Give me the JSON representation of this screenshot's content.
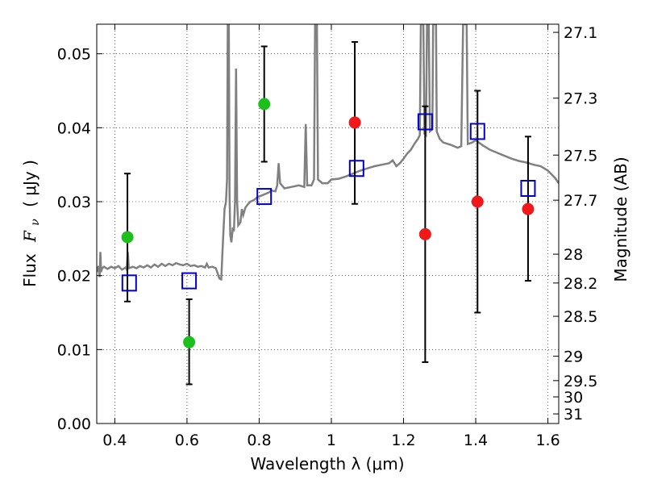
{
  "chart_data": {
    "type": "scatter",
    "title": "",
    "xlabel": "Wavelength  λ (μm)",
    "ylabel_prefix": "Flux",
    "ylabel_symbol": "F",
    "ylabel_subscript": "ν",
    "ylabel_unit": "( μJy )",
    "y2label": "Magnitude (AB)",
    "xlim": [
      0.35,
      1.63
    ],
    "ylim": [
      0.0,
      0.054
    ],
    "grid": true,
    "grid_style": "dotted",
    "x_ticks": [
      {
        "value": 0.4,
        "label": "0.4"
      },
      {
        "value": 0.6,
        "label": "0.6"
      },
      {
        "value": 0.8,
        "label": "0.8"
      },
      {
        "value": 1.0,
        "label": "1"
      },
      {
        "value": 1.2,
        "label": "1.2"
      },
      {
        "value": 1.4,
        "label": "1.4"
      },
      {
        "value": 1.6,
        "label": "1.6"
      }
    ],
    "y_ticks": [
      {
        "value": 0.0,
        "label": "0.00"
      },
      {
        "value": 0.01,
        "label": "0.01"
      },
      {
        "value": 0.02,
        "label": "0.02"
      },
      {
        "value": 0.03,
        "label": "0.03"
      },
      {
        "value": 0.04,
        "label": "0.04"
      },
      {
        "value": 0.05,
        "label": "0.05"
      }
    ],
    "y2_ticks": [
      {
        "flux": 0.0529,
        "label": "27.1"
      },
      {
        "flux": 0.044,
        "label": "27.3"
      },
      {
        "flux": 0.0363,
        "label": "27.5"
      },
      {
        "flux": 0.0302,
        "label": "27.7"
      },
      {
        "flux": 0.0229,
        "label": "28"
      },
      {
        "flux": 0.019,
        "label": "28.2"
      },
      {
        "flux": 0.0145,
        "label": "28.5"
      },
      {
        "flux": 0.0091,
        "label": "29"
      },
      {
        "flux": 0.0058,
        "label": "29.5"
      },
      {
        "flux": 0.0036,
        "label": "30"
      },
      {
        "flux": 0.0013,
        "label": "31"
      }
    ],
    "colors": {
      "model": "#808080",
      "green": "#1dbf1d",
      "red": "#f01818",
      "square": "#0000cc",
      "errorbar": "#000000"
    },
    "series": [
      {
        "marker": "circle",
        "color": "green",
        "points": [
          {
            "x": 0.435,
            "y": 0.0252,
            "ylo": 0.0165,
            "yhi": 0.0338
          },
          {
            "x": 0.606,
            "y": 0.011,
            "ylo": 0.0053,
            "yhi": 0.0168
          },
          {
            "x": 0.814,
            "y": 0.0432,
            "ylo": 0.0354,
            "yhi": 0.051
          }
        ]
      },
      {
        "marker": "circle",
        "color": "red",
        "points": [
          {
            "x": 1.065,
            "y": 0.0407,
            "ylo": 0.0297,
            "yhi": 0.0516
          },
          {
            "x": 1.26,
            "y": 0.0256,
            "ylo": 0.0083,
            "yhi": 0.0429
          },
          {
            "x": 1.405,
            "y": 0.03,
            "ylo": 0.015,
            "yhi": 0.045
          },
          {
            "x": 1.545,
            "y": 0.029,
            "ylo": 0.0193,
            "yhi": 0.0388
          }
        ]
      },
      {
        "marker": "square",
        "color": "square",
        "points": [
          {
            "x": 0.44,
            "y": 0.019
          },
          {
            "x": 0.606,
            "y": 0.0193
          },
          {
            "x": 0.814,
            "y": 0.0307
          },
          {
            "x": 1.07,
            "y": 0.0345
          },
          {
            "x": 1.26,
            "y": 0.0408
          },
          {
            "x": 1.405,
            "y": 0.0395
          },
          {
            "x": 1.545,
            "y": 0.0318
          }
        ]
      }
    ],
    "model_spectrum": [
      [
        0.35,
        0.0205
      ],
      [
        0.355,
        0.0213
      ],
      [
        0.358,
        0.0198
      ],
      [
        0.36,
        0.0232
      ],
      [
        0.362,
        0.0205
      ],
      [
        0.365,
        0.021
      ],
      [
        0.37,
        0.0212
      ],
      [
        0.38,
        0.0209
      ],
      [
        0.39,
        0.0212
      ],
      [
        0.4,
        0.021
      ],
      [
        0.41,
        0.0213
      ],
      [
        0.42,
        0.0208
      ],
      [
        0.43,
        0.0211
      ],
      [
        0.433,
        0.0208
      ],
      [
        0.436,
        0.0232
      ],
      [
        0.439,
        0.021
      ],
      [
        0.45,
        0.0212
      ],
      [
        0.46,
        0.021
      ],
      [
        0.47,
        0.0213
      ],
      [
        0.48,
        0.0211
      ],
      [
        0.49,
        0.0214
      ],
      [
        0.5,
        0.0211
      ],
      [
        0.51,
        0.0215
      ],
      [
        0.52,
        0.0212
      ],
      [
        0.53,
        0.0216
      ],
      [
        0.54,
        0.0213
      ],
      [
        0.55,
        0.0216
      ],
      [
        0.56,
        0.0214
      ],
      [
        0.57,
        0.0217
      ],
      [
        0.58,
        0.0215
      ],
      [
        0.59,
        0.0214
      ],
      [
        0.6,
        0.0216
      ],
      [
        0.61,
        0.0213
      ],
      [
        0.62,
        0.0214
      ],
      [
        0.63,
        0.0212
      ],
      [
        0.64,
        0.0213
      ],
      [
        0.65,
        0.0211
      ],
      [
        0.655,
        0.0216
      ],
      [
        0.66,
        0.0211
      ],
      [
        0.67,
        0.0212
      ],
      [
        0.68,
        0.021
      ],
      [
        0.69,
        0.0196
      ],
      [
        0.695,
        0.0195
      ],
      [
        0.7,
        0.025
      ],
      [
        0.704,
        0.029
      ],
      [
        0.708,
        0.03
      ],
      [
        0.711,
        0.033
      ],
      [
        0.713,
        0.054
      ],
      [
        0.716,
        0.054
      ],
      [
        0.718,
        0.031
      ],
      [
        0.72,
        0.0255
      ],
      [
        0.723,
        0.0245
      ],
      [
        0.727,
        0.0265
      ],
      [
        0.73,
        0.026
      ],
      [
        0.733,
        0.03
      ],
      [
        0.736,
        0.048
      ],
      [
        0.739,
        0.03
      ],
      [
        0.742,
        0.0268
      ],
      [
        0.748,
        0.0272
      ],
      [
        0.752,
        0.029
      ],
      [
        0.756,
        0.0282
      ],
      [
        0.762,
        0.0292
      ],
      [
        0.768,
        0.0296
      ],
      [
        0.775,
        0.03
      ],
      [
        0.785,
        0.0302
      ],
      [
        0.795,
        0.0306
      ],
      [
        0.805,
        0.0308
      ],
      [
        0.815,
        0.031
      ],
      [
        0.825,
        0.0312
      ],
      [
        0.835,
        0.0315
      ],
      [
        0.845,
        0.0314
      ],
      [
        0.85,
        0.0322
      ],
      [
        0.854,
        0.0352
      ],
      [
        0.858,
        0.0325
      ],
      [
        0.87,
        0.0318
      ],
      [
        0.89,
        0.032
      ],
      [
        0.91,
        0.0322
      ],
      [
        0.925,
        0.032
      ],
      [
        0.929,
        0.0405
      ],
      [
        0.933,
        0.0322
      ],
      [
        0.945,
        0.0322
      ],
      [
        0.952,
        0.033
      ],
      [
        0.955,
        0.054
      ],
      [
        0.96,
        0.054
      ],
      [
        0.963,
        0.033
      ],
      [
        0.975,
        0.0325
      ],
      [
        0.99,
        0.0325
      ],
      [
        1.0,
        0.033
      ],
      [
        1.02,
        0.0331
      ],
      [
        1.04,
        0.0334
      ],
      [
        1.06,
        0.0338
      ],
      [
        1.08,
        0.0342
      ],
      [
        1.1,
        0.0345
      ],
      [
        1.12,
        0.0348
      ],
      [
        1.14,
        0.035
      ],
      [
        1.16,
        0.0352
      ],
      [
        1.17,
        0.0356
      ],
      [
        1.18,
        0.0348
      ],
      [
        1.19,
        0.0352
      ],
      [
        1.2,
        0.0358
      ],
      [
        1.21,
        0.0365
      ],
      [
        1.22,
        0.037
      ],
      [
        1.23,
        0.0378
      ],
      [
        1.24,
        0.0385
      ],
      [
        1.245,
        0.039
      ],
      [
        1.248,
        0.054
      ],
      [
        1.255,
        0.054
      ],
      [
        1.258,
        0.0392
      ],
      [
        1.262,
        0.039
      ],
      [
        1.265,
        0.054
      ],
      [
        1.27,
        0.054
      ],
      [
        1.273,
        0.0395
      ],
      [
        1.28,
        0.0398
      ],
      [
        1.282,
        0.054
      ],
      [
        1.29,
        0.054
      ],
      [
        1.292,
        0.0395
      ],
      [
        1.3,
        0.0385
      ],
      [
        1.31,
        0.038
      ],
      [
        1.33,
        0.0377
      ],
      [
        1.35,
        0.0373
      ],
      [
        1.36,
        0.0375
      ],
      [
        1.365,
        0.054
      ],
      [
        1.375,
        0.054
      ],
      [
        1.378,
        0.0378
      ],
      [
        1.39,
        0.038
      ],
      [
        1.4,
        0.0383
      ],
      [
        1.42,
        0.0376
      ],
      [
        1.44,
        0.037
      ],
      [
        1.46,
        0.0366
      ],
      [
        1.48,
        0.0362
      ],
      [
        1.5,
        0.0358
      ],
      [
        1.52,
        0.0355
      ],
      [
        1.54,
        0.0353
      ],
      [
        1.56,
        0.035
      ],
      [
        1.58,
        0.0348
      ],
      [
        1.6,
        0.0342
      ],
      [
        1.62,
        0.0332
      ],
      [
        1.63,
        0.0325
      ]
    ]
  }
}
